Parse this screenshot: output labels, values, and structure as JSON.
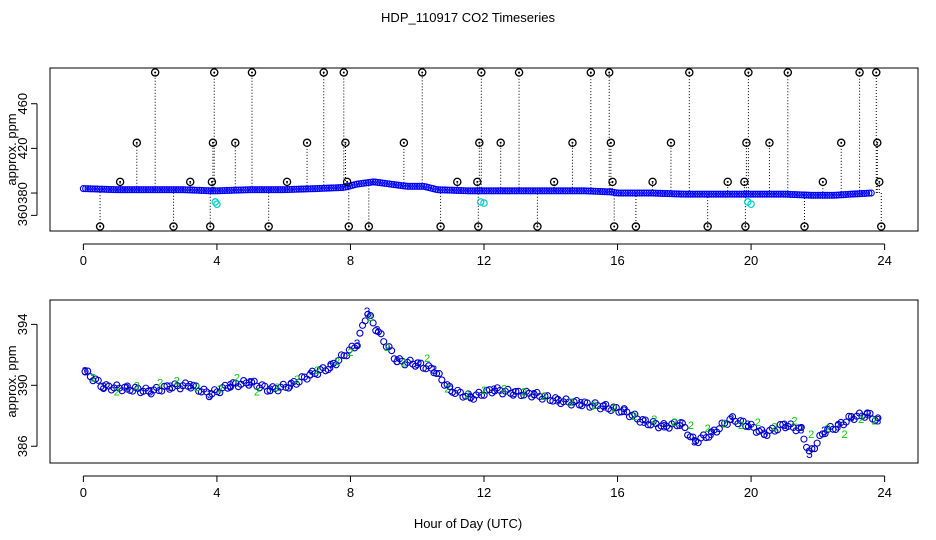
{
  "figure": {
    "title": "HDP_110917  CO2 Timeseries",
    "xlabel": "Hour of Day (UTC)"
  },
  "colors": {
    "axis": "#000000",
    "raw_points": "#0000ff",
    "flagged_points": "#00cdcd",
    "outliers": "#000000",
    "level2": "#00cd00",
    "level3": "#0000cd"
  },
  "chart_data": [
    {
      "type": "scatter",
      "panel": "top",
      "title": "",
      "xlabel": "",
      "ylabel": "approx. ppm",
      "xlim": [
        -1,
        25
      ],
      "ylim": [
        346,
        492
      ],
      "x_ticks": [
        0,
        4,
        8,
        12,
        16,
        20,
        24
      ],
      "y_ticks": [
        360,
        380,
        420,
        460
      ],
      "grid": false,
      "series": [
        {
          "name": "raw",
          "marker": "open-circle",
          "baseline": [
            [
              0,
              384
            ],
            [
              1,
              383
            ],
            [
              2,
              383
            ],
            [
              3,
              383
            ],
            [
              3.8,
              382
            ],
            [
              4,
              382
            ],
            [
              5,
              383
            ],
            [
              6,
              383
            ],
            [
              7,
              384
            ],
            [
              7.8,
              385
            ],
            [
              8.2,
              388
            ],
            [
              8.7,
              390
            ],
            [
              9.2,
              388
            ],
            [
              9.7,
              386
            ],
            [
              10.2,
              386
            ],
            [
              10.6,
              383
            ],
            [
              11.5,
              382
            ],
            [
              12,
              382
            ],
            [
              13,
              382
            ],
            [
              14,
              382
            ],
            [
              15,
              382
            ],
            [
              15.8,
              381
            ],
            [
              16,
              380
            ],
            [
              17,
              380
            ],
            [
              18,
              379
            ],
            [
              19,
              379
            ],
            [
              19.8,
              379
            ],
            [
              20,
              379
            ],
            [
              21,
              379
            ],
            [
              21.8,
              378
            ],
            [
              22.5,
              378
            ],
            [
              23,
              379
            ],
            [
              23.6,
              380
            ]
          ]
        },
        {
          "name": "flagged",
          "marker": "open-circle",
          "points": [
            [
              3.95,
              372
            ],
            [
              4.0,
              370
            ],
            [
              11.9,
              372
            ],
            [
              12.0,
              371
            ],
            [
              19.9,
              372
            ],
            [
              20.0,
              370
            ]
          ]
        },
        {
          "name": "outliers",
          "marker": "circle-with-dot",
          "points": [
            [
              0.5,
              350
            ],
            [
              1.1,
              390
            ],
            [
              1.6,
              425
            ],
            [
              2.15,
              488
            ],
            [
              2.7,
              350
            ],
            [
              3.2,
              390
            ],
            [
              3.8,
              350
            ],
            [
              3.85,
              390
            ],
            [
              3.88,
              425
            ],
            [
              3.92,
              488
            ],
            [
              4.55,
              425
            ],
            [
              5.05,
              488
            ],
            [
              5.55,
              350
            ],
            [
              6.1,
              390
            ],
            [
              6.7,
              425
            ],
            [
              7.2,
              488
            ],
            [
              7.8,
              488
            ],
            [
              7.85,
              425
            ],
            [
              7.9,
              390
            ],
            [
              7.95,
              350
            ],
            [
              8.55,
              350
            ],
            [
              9.6,
              425
            ],
            [
              10.15,
              488
            ],
            [
              10.7,
              350
            ],
            [
              11.2,
              390
            ],
            [
              11.8,
              390
            ],
            [
              11.83,
              350
            ],
            [
              11.86,
              425
            ],
            [
              11.92,
              488
            ],
            [
              12.5,
              425
            ],
            [
              13.05,
              488
            ],
            [
              13.6,
              350
            ],
            [
              14.1,
              390
            ],
            [
              14.65,
              425
            ],
            [
              15.2,
              488
            ],
            [
              15.75,
              488
            ],
            [
              15.8,
              425
            ],
            [
              15.85,
              390
            ],
            [
              15.9,
              350
            ],
            [
              16.55,
              350
            ],
            [
              17.05,
              390
            ],
            [
              17.6,
              425
            ],
            [
              18.15,
              488
            ],
            [
              18.7,
              350
            ],
            [
              19.3,
              390
            ],
            [
              19.8,
              390
            ],
            [
              19.83,
              350
            ],
            [
              19.86,
              425
            ],
            [
              19.92,
              488
            ],
            [
              20.55,
              425
            ],
            [
              21.1,
              488
            ],
            [
              21.6,
              350
            ],
            [
              22.15,
              390
            ],
            [
              22.7,
              425
            ],
            [
              23.25,
              488
            ],
            [
              23.75,
              488
            ],
            [
              23.78,
              425
            ],
            [
              23.84,
              390
            ],
            [
              23.9,
              350
            ]
          ]
        }
      ]
    },
    {
      "type": "scatter",
      "panel": "bottom",
      "title": "",
      "xlabel": "Hour of Day (UTC)",
      "ylabel": "approx. ppm",
      "xlim": [
        -1,
        25
      ],
      "ylim": [
        384.9,
        395.6
      ],
      "x_ticks": [
        0,
        4,
        8,
        12,
        16,
        20,
        24
      ],
      "y_ticks": [
        386,
        390,
        394
      ],
      "grid": false,
      "series": [
        {
          "name": "2",
          "marker": "digit-2",
          "points": [
            [
              0.3,
              390.5
            ],
            [
              1.0,
              389.6
            ],
            [
              1.6,
              390.0
            ],
            [
              2.3,
              390.2
            ],
            [
              2.8,
              390.3
            ],
            [
              3.4,
              389.9
            ],
            [
              4.1,
              389.8
            ],
            [
              4.6,
              390.5
            ],
            [
              5.2,
              389.6
            ],
            [
              5.8,
              389.9
            ],
            [
              6.4,
              390.4
            ],
            [
              7.0,
              391.0
            ],
            [
              7.6,
              391.6
            ],
            [
              8.0,
              392.2
            ],
            [
              8.6,
              394.5
            ],
            [
              9.1,
              392.5
            ],
            [
              9.6,
              391.5
            ],
            [
              10.3,
              391.8
            ],
            [
              10.9,
              389.8
            ],
            [
              11.5,
              389.4
            ],
            [
              12.0,
              389.7
            ],
            [
              12.6,
              389.8
            ],
            [
              13.2,
              389.6
            ],
            [
              13.8,
              389.3
            ],
            [
              14.6,
              388.9
            ],
            [
              15.3,
              388.7
            ],
            [
              15.9,
              388.5
            ],
            [
              16.5,
              388.0
            ],
            [
              17.1,
              387.8
            ],
            [
              17.7,
              387.6
            ],
            [
              18.2,
              387.4
            ],
            [
              18.7,
              387.2
            ],
            [
              19.2,
              387.5
            ],
            [
              19.7,
              387.4
            ],
            [
              20.2,
              387.6
            ],
            [
              20.7,
              387.3
            ],
            [
              21.3,
              387.7
            ],
            [
              21.8,
              386.8
            ],
            [
              22.3,
              387.2
            ],
            [
              22.8,
              386.8
            ],
            [
              23.3,
              387.8
            ],
            [
              23.7,
              387.7
            ]
          ]
        },
        {
          "name": "3",
          "marker": "digit-3",
          "points": [
            [
              0.05,
              390.9
            ],
            [
              0.6,
              389.9
            ],
            [
              1.3,
              389.8
            ],
            [
              2.0,
              389.6
            ],
            [
              2.6,
              389.9
            ],
            [
              3.2,
              390.0
            ],
            [
              3.8,
              389.4
            ],
            [
              4.4,
              390.0
            ],
            [
              5.0,
              390.2
            ],
            [
              5.6,
              389.7
            ],
            [
              6.2,
              390.0
            ],
            [
              6.8,
              390.7
            ],
            [
              7.4,
              391.2
            ],
            [
              8.2,
              392.7
            ],
            [
              8.5,
              394.8
            ],
            [
              8.8,
              393.6
            ],
            [
              9.4,
              391.6
            ],
            [
              10.0,
              391.4
            ],
            [
              10.5,
              391.0
            ],
            [
              11.0,
              389.7
            ],
            [
              11.6,
              389.2
            ],
            [
              12.3,
              389.7
            ],
            [
              12.9,
              389.5
            ],
            [
              13.5,
              389.4
            ],
            [
              14.2,
              389.0
            ],
            [
              14.9,
              388.8
            ],
            [
              15.6,
              388.6
            ],
            [
              16.2,
              388.3
            ],
            [
              16.8,
              387.6
            ],
            [
              17.4,
              387.3
            ],
            [
              17.9,
              387.5
            ],
            [
              18.3,
              386.3
            ],
            [
              18.8,
              386.8
            ],
            [
              19.4,
              387.8
            ],
            [
              19.9,
              387.4
            ],
            [
              20.4,
              386.8
            ],
            [
              21.0,
              387.4
            ],
            [
              21.5,
              387.1
            ],
            [
              21.75,
              385.5
            ],
            [
              22.2,
              387.0
            ],
            [
              22.6,
              387.3
            ],
            [
              23.0,
              387.9
            ],
            [
              23.5,
              388.1
            ],
            [
              23.8,
              387.7
            ]
          ]
        }
      ]
    }
  ]
}
